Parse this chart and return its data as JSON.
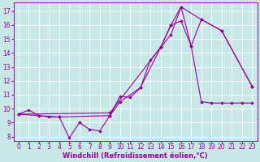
{
  "background_color": "#c8e8e8",
  "grid_color": "#b0d0d0",
  "line_color": "#990099",
  "marker": "D",
  "markersize": 1.8,
  "linewidth": 0.8,
  "xlabel": "Windchill (Refroidissement éolien,°C)",
  "xlabel_fontsize": 6.0,
  "tick_fontsize": 5.5,
  "xlim": [
    -0.5,
    23.5
  ],
  "ylim": [
    7.7,
    17.6
  ],
  "yticks": [
    8,
    9,
    10,
    11,
    12,
    13,
    14,
    15,
    16,
    17
  ],
  "xticks": [
    0,
    1,
    2,
    3,
    4,
    5,
    6,
    7,
    8,
    9,
    10,
    11,
    12,
    13,
    14,
    15,
    16,
    17,
    18,
    19,
    20,
    21,
    22,
    23
  ],
  "series1_x": [
    0,
    1,
    2,
    3,
    4,
    5,
    6,
    7,
    8,
    9,
    10,
    11,
    12,
    13,
    14,
    15,
    16,
    17,
    18,
    19,
    20,
    21,
    22,
    23
  ],
  "series1_y": [
    9.6,
    9.9,
    9.5,
    9.4,
    9.4,
    7.9,
    9.0,
    8.5,
    8.4,
    9.5,
    10.9,
    10.8,
    11.5,
    13.5,
    14.4,
    15.3,
    17.3,
    14.5,
    10.5,
    10.4,
    10.4,
    10.4,
    10.4,
    10.4
  ],
  "series2_x": [
    0,
    2,
    4,
    9,
    10,
    12,
    14,
    15,
    16,
    17,
    18,
    20,
    23
  ],
  "series2_y": [
    9.6,
    9.5,
    9.4,
    9.5,
    10.5,
    11.5,
    14.4,
    16.0,
    16.3,
    14.5,
    16.4,
    15.6,
    11.6
  ],
  "series3_x": [
    0,
    9,
    14,
    15,
    16,
    18,
    20,
    23
  ],
  "series3_y": [
    9.6,
    9.7,
    14.4,
    16.0,
    17.3,
    16.4,
    15.6,
    11.6
  ]
}
